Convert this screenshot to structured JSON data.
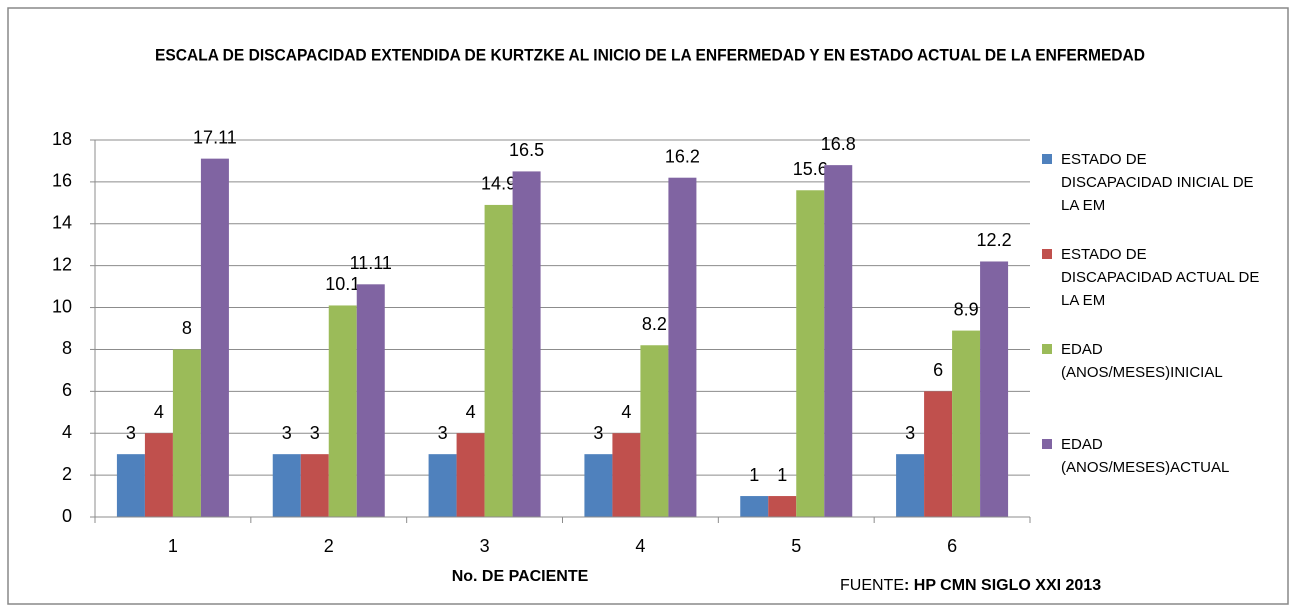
{
  "chart_data": {
    "type": "bar",
    "title": "ESCALA DE DISCAPACIDAD EXTENDIDA DE KURTZKE AL INICIO DE LA ENFERMEDAD Y EN ESTADO ACTUAL DE LA ENFERMEDAD",
    "x_label": "No. DE PACIENTE",
    "source_prefix": "FUENTE",
    "source_text": ":  HP CMN SIGLO XXI 2013",
    "categories": [
      "1",
      "2",
      "3",
      "4",
      "5",
      "6"
    ],
    "series": [
      {
        "name": "ESTADO DE DISCAPACIDAD INICIAL DE LA EM",
        "color": "#4f81bd",
        "values": [
          3,
          3,
          3,
          3,
          1,
          3
        ]
      },
      {
        "name": "ESTADO DE DISCAPACIDAD ACTUAL DE LA EM",
        "color": "#c0504d",
        "values": [
          4,
          3,
          4,
          4,
          1,
          6
        ]
      },
      {
        "name": "EDAD (ANOS/MESES)INICIAL",
        "color": "#9bbb59",
        "values": [
          8,
          10.1,
          14.9,
          8.2,
          15.6,
          8.9
        ]
      },
      {
        "name": "EDAD (ANOS/MESES)ACTUAL",
        "color": "#8064a2",
        "values": [
          17.11,
          11.11,
          16.5,
          16.2,
          16.8,
          12.2
        ]
      }
    ],
    "ylim": [
      0,
      18
    ],
    "yticks": [
      0,
      2,
      4,
      6,
      8,
      10,
      12,
      14,
      16,
      18
    ],
    "grid": true,
    "legend": "right"
  }
}
